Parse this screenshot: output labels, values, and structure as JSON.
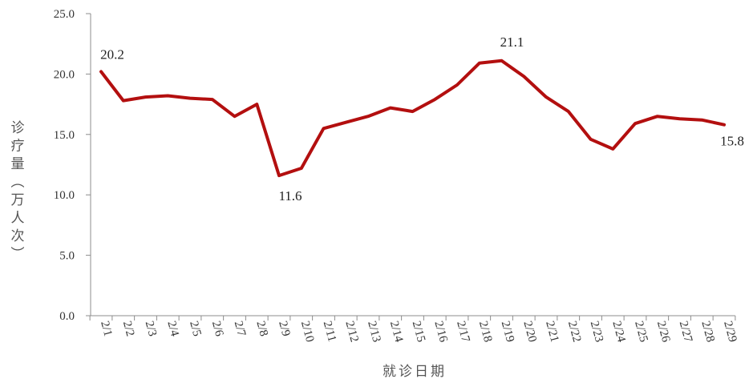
{
  "chart_data": {
    "type": "line",
    "x": [
      "2/1",
      "2/2",
      "2/3",
      "2/4",
      "2/5",
      "2/6",
      "2/7",
      "2/8",
      "2/9",
      "2/10",
      "2/11",
      "2/12",
      "2/13",
      "2/14",
      "2/15",
      "2/16",
      "2/17",
      "2/18",
      "2/19",
      "2/20",
      "2/21",
      "2/22",
      "2/23",
      "2/24",
      "2/25",
      "2/26",
      "2/27",
      "2/28",
      "2/29"
    ],
    "series": [
      {
        "values": [
          20.2,
          17.8,
          18.1,
          18.2,
          18.0,
          17.9,
          16.5,
          17.5,
          11.6,
          12.2,
          15.5,
          16.0,
          16.5,
          17.2,
          16.9,
          17.9,
          19.1,
          20.9,
          21.1,
          19.8,
          18.1,
          16.9,
          14.6,
          13.8,
          15.9,
          16.5,
          16.3,
          16.2,
          15.8
        ],
        "color": "#b30f0f"
      }
    ],
    "data_labels": [
      {
        "x": "2/1",
        "text": "20.2"
      },
      {
        "x": "2/9",
        "text": "11.6"
      },
      {
        "x": "2/19",
        "text": "21.1"
      },
      {
        "x": "2/29",
        "text": "15.8"
      }
    ],
    "y_ticks": [
      "0.0",
      "5.0",
      "10.0",
      "15.0",
      "20.0",
      "25.0"
    ],
    "xlabel": "就诊日期",
    "ylabel": "诊疗量（万人次）",
    "ylim": [
      0,
      25
    ],
    "grid": false,
    "legend": "none"
  }
}
